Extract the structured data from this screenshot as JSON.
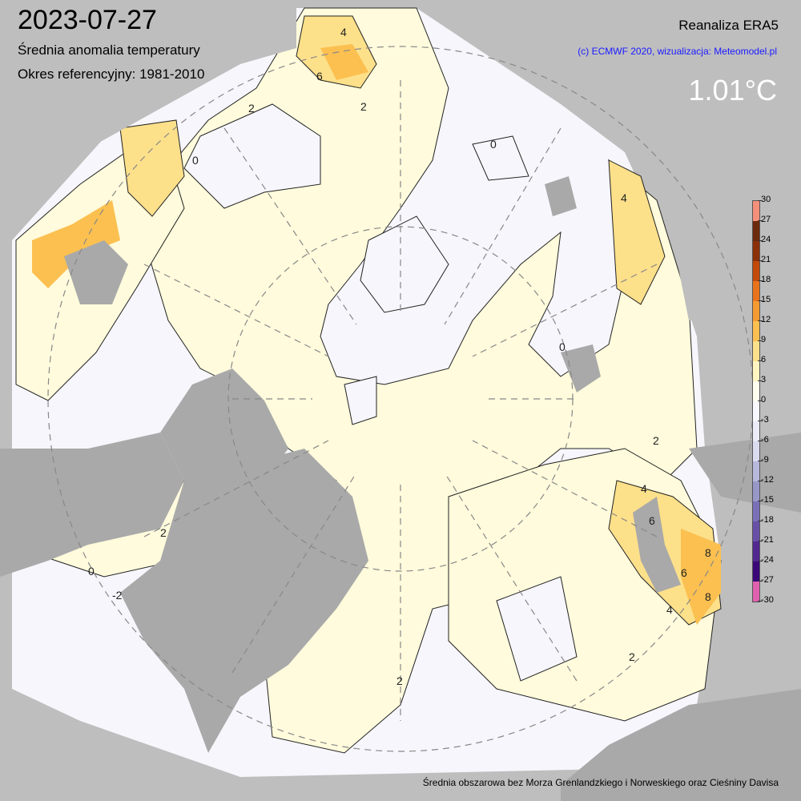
{
  "header": {
    "date": "2023-07-27",
    "subtitle": "Średnia anomalia temperatury",
    "reference_period": "Okres referencyjny: 1981-2010",
    "source": "Reanaliza ERA5",
    "copyright": "(c) ECMWF 2020, wizualizacja: Meteomodel.pl",
    "mean_anomaly": "1.01°C"
  },
  "footer": {
    "note": "Średnia obszarowa bez Morza Grenlandzkiego i Norweskiego oraz Cieśniny Davisa"
  },
  "map": {
    "projection": "polar stereographic (North Pole)",
    "land_color": "#a9a9a9",
    "background_color": "#bebebe",
    "contour_labels": [
      "0",
      "2",
      "4",
      "6",
      "8",
      "-2"
    ]
  },
  "colorbar": {
    "ticks": [
      "30",
      "27",
      "24",
      "21",
      "18",
      "15",
      "12",
      "9",
      "6",
      "3",
      "0",
      "-3",
      "-6",
      "-9",
      "-12",
      "-15",
      "-18",
      "-21",
      "-24",
      "-27",
      "-30"
    ],
    "colors": [
      "#f4907a",
      "#6b2a0c",
      "#8c3008",
      "#c44a0a",
      "#e8731c",
      "#f59a30",
      "#fbc050",
      "#fde08a",
      "#fff5c0",
      "#fffff0",
      "#f8f8ff",
      "#ececf8",
      "#dcdcf0",
      "#b8b8dc",
      "#9898c8",
      "#7a70b8",
      "#6850a8",
      "#502890",
      "#3a0878",
      "#e060b0"
    ]
  }
}
